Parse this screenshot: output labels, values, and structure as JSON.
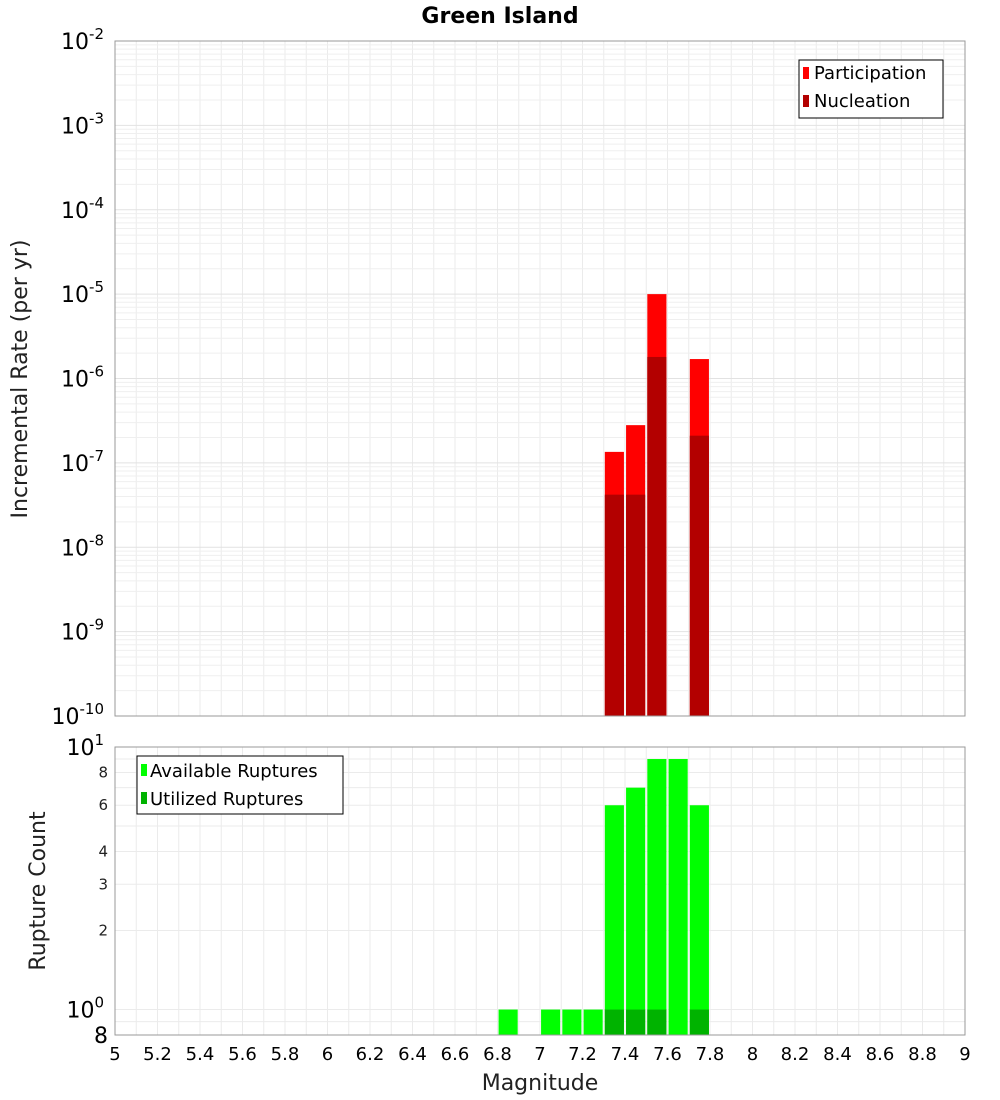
{
  "title": "Green Island",
  "chart_data": [
    {
      "type": "bar",
      "panel": "top",
      "y_scale": "log",
      "ylabel": "Incremental Rate (per yr)",
      "ylim": [
        1e-10,
        0.01
      ],
      "ytick_bases": [
        "10",
        "10",
        "10",
        "10",
        "10",
        "10",
        "10",
        "10",
        "10"
      ],
      "ytick_exponents": [
        "-2",
        "-3",
        "-4",
        "-5",
        "-6",
        "-7",
        "-8",
        "-9",
        "-10"
      ],
      "grid": true,
      "legend_position": "top-right",
      "bar_width": 0.09,
      "series": [
        {
          "name": "Participation",
          "color": "#ff0000",
          "points": [
            [
              7.35,
              1.35e-07
            ],
            [
              7.45,
              2.8e-07
            ],
            [
              7.55,
              1e-05
            ],
            [
              7.75,
              1.7e-06
            ]
          ]
        },
        {
          "name": "Nucleation",
          "color": "#b30000",
          "points": [
            [
              7.35,
              4.2e-08
            ],
            [
              7.45,
              4.2e-08
            ],
            [
              7.55,
              1.8e-06
            ],
            [
              7.75,
              2.1e-07
            ]
          ]
        }
      ]
    },
    {
      "type": "bar",
      "panel": "bottom",
      "y_scale": "log",
      "ylabel": "Rupture Count",
      "ylim": [
        0.8,
        10
      ],
      "ytick_labels": {
        "top_base": "10",
        "top_exp": "1",
        "minor": [
          "8",
          "6",
          "4",
          "3",
          "2"
        ],
        "one_base": "10",
        "one_exp": "0",
        "bottom": "8"
      },
      "xlabel": "Magnitude",
      "xlim": [
        5,
        9
      ],
      "xticks": [
        "5",
        "5.2",
        "5.4",
        "5.6",
        "5.8",
        "6",
        "6.2",
        "6.4",
        "6.6",
        "6.8",
        "7",
        "7.2",
        "7.4",
        "7.6",
        "7.8",
        "8",
        "8.2",
        "8.4",
        "8.6",
        "8.8",
        "9"
      ],
      "grid": true,
      "legend_position": "top-left",
      "bar_width": 0.09,
      "series": [
        {
          "name": "Available Ruptures",
          "color": "#00ff00",
          "points": [
            [
              6.85,
              1
            ],
            [
              7.05,
              1
            ],
            [
              7.15,
              1
            ],
            [
              7.25,
              1
            ],
            [
              7.35,
              6
            ],
            [
              7.45,
              7
            ],
            [
              7.55,
              9
            ],
            [
              7.65,
              9
            ],
            [
              7.75,
              6
            ]
          ]
        },
        {
          "name": "Utilized Ruptures",
          "color": "#00b300",
          "points": [
            [
              7.35,
              1
            ],
            [
              7.45,
              1
            ],
            [
              7.55,
              1
            ],
            [
              7.75,
              1
            ]
          ]
        }
      ]
    }
  ]
}
